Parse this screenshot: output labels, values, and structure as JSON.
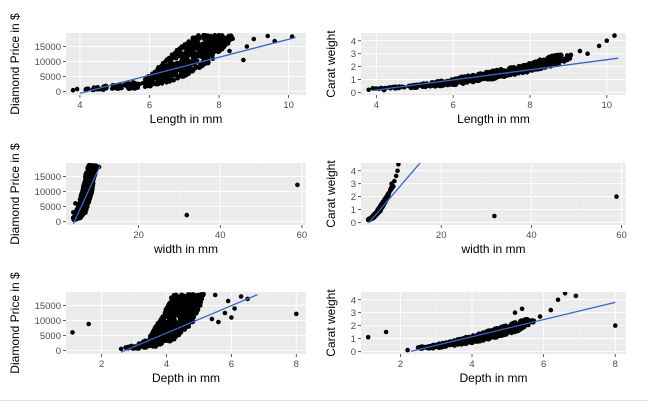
{
  "colors": {
    "panel": "#ebebeb",
    "grid_major": "#ffffff",
    "grid_minor": "#f4f4f4",
    "points": "#000000",
    "fit": "#3366cc",
    "tick_text": "#4d4d4d"
  },
  "chart_data": [
    {
      "type": "scatter",
      "xlabel": "Length in mm",
      "ylabel": "Diamond Price in $",
      "xlim": [
        3.6,
        10.5
      ],
      "ylim": [
        -1200,
        19500
      ],
      "xticks": [
        4,
        6,
        8,
        10
      ],
      "yticks": [
        0,
        5000,
        10000,
        15000
      ],
      "xtick_labels": [
        "4",
        "6",
        "8",
        "10"
      ],
      "ytick_labels": [
        "0",
        "5000",
        "10000",
        "15000"
      ],
      "grid": true,
      "legend": "none",
      "fit_line": {
        "x": [
          4.0,
          10.2
        ],
        "y": [
          -600,
          18000
        ]
      },
      "cloud": [
        [
          3.9,
          450
        ],
        [
          4.5,
          500
        ],
        [
          5.5,
          800
        ],
        [
          6.3,
          2000
        ],
        [
          7.0,
          5000
        ],
        [
          7.7,
          9500
        ],
        [
          8.5,
          18800
        ],
        [
          7.3,
          18800
        ],
        [
          6.5,
          11000
        ],
        [
          5.8,
          3500
        ],
        [
          4.6,
          1600
        ],
        [
          3.9,
          800
        ]
      ],
      "points": [
        [
          3.8,
          400
        ],
        [
          4.5,
          700
        ],
        [
          5.1,
          900
        ],
        [
          5.6,
          1500
        ],
        [
          6.0,
          3000
        ],
        [
          6.3,
          8000
        ],
        [
          6.6,
          9500
        ],
        [
          7.0,
          12500
        ],
        [
          7.4,
          14000
        ],
        [
          7.8,
          16000
        ],
        [
          8.3,
          13500
        ],
        [
          8.7,
          10500
        ],
        [
          8.8,
          15000
        ],
        [
          9.0,
          17500
        ],
        [
          9.4,
          18500
        ],
        [
          10.1,
          18300
        ],
        [
          9.6,
          16800
        ],
        [
          4.2,
          500
        ],
        [
          5.3,
          2200
        ]
      ]
    },
    {
      "type": "scatter",
      "xlabel": "Length in mm",
      "ylabel": "Carat weight",
      "xlim": [
        3.6,
        10.5
      ],
      "ylim": [
        -0.2,
        4.6
      ],
      "xticks": [
        4,
        6,
        8,
        10
      ],
      "yticks": [
        0,
        1,
        2,
        3,
        4
      ],
      "xtick_labels": [
        "4",
        "6",
        "8",
        "10"
      ],
      "ytick_labels": [
        "0",
        "1",
        "2",
        "3",
        "4"
      ],
      "grid": true,
      "legend": "none",
      "fit_line": {
        "x": [
          3.9,
          10.3
        ],
        "y": [
          0.15,
          2.65
        ]
      },
      "cloud": [
        [
          3.9,
          0.25
        ],
        [
          5.0,
          0.35
        ],
        [
          6.0,
          0.55
        ],
        [
          7.0,
          1.0
        ],
        [
          8.0,
          1.6
        ],
        [
          8.8,
          2.2
        ],
        [
          9.2,
          2.9
        ],
        [
          8.7,
          2.95
        ],
        [
          7.8,
          2.1
        ],
        [
          6.8,
          1.55
        ],
        [
          5.8,
          0.95
        ],
        [
          4.8,
          0.5
        ],
        [
          3.9,
          0.35
        ]
      ],
      "points": [
        [
          9.5,
          3.0
        ],
        [
          9.8,
          3.6
        ],
        [
          10.0,
          4.0
        ],
        [
          10.2,
          4.4
        ],
        [
          9.3,
          3.2
        ],
        [
          8.5,
          2.45
        ],
        [
          3.8,
          0.2
        ],
        [
          4.2,
          0.18
        ]
      ]
    },
    {
      "type": "scatter",
      "xlabel": "width in mm",
      "ylabel": "Diamond Price in $",
      "xlim": [
        2.2,
        61
      ],
      "ylim": [
        -1200,
        19500
      ],
      "xticks": [
        20,
        40,
        60
      ],
      "yticks": [
        0,
        5000,
        10000,
        15000
      ],
      "xtick_labels": [
        "20",
        "40",
        "60"
      ],
      "ytick_labels": [
        "0",
        "5000",
        "10000",
        "15000"
      ],
      "grid": true,
      "legend": "none",
      "fit_line": {
        "x": [
          4.0,
          10.6
        ],
        "y": [
          -800,
          18700
        ]
      },
      "cloud": [
        [
          3.8,
          400
        ],
        [
          5.5,
          800
        ],
        [
          7.0,
          3000
        ],
        [
          8.5,
          9500
        ],
        [
          9.8,
          18800
        ],
        [
          7.5,
          18800
        ],
        [
          6.5,
          12000
        ],
        [
          5.2,
          5000
        ],
        [
          4.2,
          2000
        ],
        [
          3.8,
          800
        ]
      ],
      "points": [
        [
          31.8,
          2100
        ],
        [
          58.9,
          12200
        ],
        [
          10.3,
          18200
        ],
        [
          4.5,
          6000
        ],
        [
          4.0,
          3000
        ]
      ]
    },
    {
      "type": "scatter",
      "xlabel": "width in mm",
      "ylabel": "Carat weight",
      "xlim": [
        2.2,
        61
      ],
      "ylim": [
        -0.2,
        4.6
      ],
      "xticks": [
        20,
        40,
        60
      ],
      "yticks": [
        0,
        1,
        2,
        3,
        4
      ],
      "xtick_labels": [
        "20",
        "40",
        "60"
      ],
      "ytick_labels": [
        "0",
        "1",
        "2",
        "3",
        "4"
      ],
      "grid": true,
      "legend": "none",
      "fit_line": {
        "x": [
          4.0,
          15.3
        ],
        "y": [
          0.0,
          4.6
        ]
      },
      "cloud": [
        [
          3.8,
          0.15
        ],
        [
          5.0,
          0.35
        ],
        [
          6.5,
          0.9
        ],
        [
          7.8,
          1.7
        ],
        [
          8.9,
          2.7
        ],
        [
          9.4,
          2.8
        ],
        [
          8.2,
          2.2
        ],
        [
          6.9,
          1.5
        ],
        [
          5.6,
          0.8
        ],
        [
          4.4,
          0.35
        ],
        [
          3.8,
          0.25
        ]
      ],
      "points": [
        [
          31.8,
          0.5
        ],
        [
          58.9,
          2.0
        ],
        [
          9.6,
          3.2
        ],
        [
          10.0,
          3.6
        ],
        [
          10.3,
          4.0
        ],
        [
          10.5,
          4.5
        ],
        [
          9.0,
          3.0
        ]
      ]
    },
    {
      "type": "scatter",
      "xlabel": "Depth in mm",
      "ylabel": "Diamond Price in $",
      "xlim": [
        0.9,
        8.3
      ],
      "ylim": [
        -1200,
        19500
      ],
      "xticks": [
        2,
        4,
        6,
        8
      ],
      "yticks": [
        0,
        5000,
        10000,
        15000
      ],
      "xtick_labels": [
        "2",
        "4",
        "6",
        "8"
      ],
      "ytick_labels": [
        "0",
        "5000",
        "10000",
        "15000"
      ],
      "grid": true,
      "legend": "none",
      "fit_line": {
        "x": [
          2.6,
          6.8
        ],
        "y": [
          -600,
          18600
        ]
      },
      "cloud": [
        [
          2.5,
          500
        ],
        [
          3.2,
          600
        ],
        [
          3.8,
          1500
        ],
        [
          4.3,
          4000
        ],
        [
          4.8,
          9000
        ],
        [
          5.2,
          18800
        ],
        [
          4.2,
          18800
        ],
        [
          3.9,
          12000
        ],
        [
          3.5,
          5000
        ],
        [
          3.1,
          2000
        ],
        [
          2.7,
          900
        ]
      ],
      "points": [
        [
          1.1,
          6000
        ],
        [
          1.6,
          8800
        ],
        [
          5.5,
          18500
        ],
        [
          5.9,
          16500
        ],
        [
          6.1,
          14000
        ],
        [
          6.3,
          18000
        ],
        [
          6.5,
          17200
        ],
        [
          6.0,
          11000
        ],
        [
          5.8,
          12500
        ],
        [
          5.6,
          9500
        ],
        [
          8.0,
          12200
        ],
        [
          2.6,
          500
        ],
        [
          5.4,
          10500
        ]
      ]
    },
    {
      "type": "scatter",
      "xlabel": "Depth in mm",
      "ylabel": "Carat weight",
      "xlim": [
        0.9,
        8.3
      ],
      "ylim": [
        -0.2,
        4.6
      ],
      "xticks": [
        2,
        4,
        6,
        8
      ],
      "yticks": [
        0,
        1,
        2,
        3,
        4
      ],
      "xtick_labels": [
        "2",
        "4",
        "6",
        "8"
      ],
      "ytick_labels": [
        "0",
        "1",
        "2",
        "3",
        "4"
      ],
      "grid": true,
      "legend": "none",
      "fit_line": {
        "x": [
          2.3,
          8.0
        ],
        "y": [
          0.0,
          3.8
        ]
      },
      "cloud": [
        [
          2.4,
          0.2
        ],
        [
          3.0,
          0.25
        ],
        [
          3.8,
          0.55
        ],
        [
          4.6,
          1.0
        ],
        [
          5.3,
          1.6
        ],
        [
          5.8,
          2.4
        ],
        [
          5.5,
          2.5
        ],
        [
          4.8,
          1.9
        ],
        [
          4.1,
          1.3
        ],
        [
          3.3,
          0.7
        ],
        [
          2.6,
          0.4
        ]
      ],
      "points": [
        [
          1.1,
          1.1
        ],
        [
          1.6,
          1.5
        ],
        [
          5.2,
          3.0
        ],
        [
          5.4,
          3.3
        ],
        [
          6.4,
          4.0
        ],
        [
          6.6,
          4.5
        ],
        [
          6.9,
          4.3
        ],
        [
          6.2,
          3.2
        ],
        [
          8.0,
          2.0
        ],
        [
          5.9,
          2.7
        ],
        [
          2.2,
          0.1
        ]
      ]
    }
  ]
}
